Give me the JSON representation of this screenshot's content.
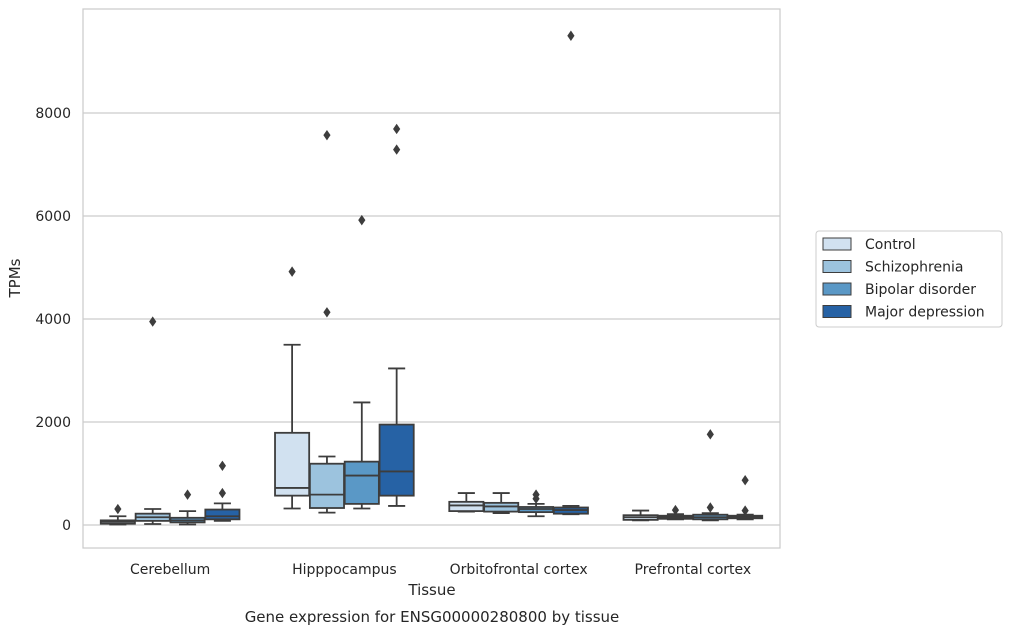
{
  "chart_data": {
    "type": "box",
    "title": "Gene expression for ENSG00000280800 by tissue",
    "xlabel": "Tissue",
    "ylabel": "TPMs",
    "ylim": [
      -440,
      10000
    ],
    "yticks": [
      0,
      2000,
      4000,
      6000,
      8000
    ],
    "grid": true,
    "legend_position": "right",
    "categories": [
      "Cerebellum",
      "Hipppocampus",
      "Orbitofrontal cortex",
      "Prefrontal cortex"
    ],
    "series": [
      {
        "name": "Control",
        "color": "#d1e1f0",
        "boxes": [
          {
            "whisker_low": 10,
            "q1": 25,
            "median": 60,
            "q3": 90,
            "whisker_high": 170,
            "outliers": [
              310
            ]
          },
          {
            "whisker_low": 320,
            "q1": 570,
            "median": 720,
            "q3": 1790,
            "whisker_high": 3500,
            "outliers": [
              4920
            ]
          },
          {
            "whisker_low": 260,
            "q1": 270,
            "median": 380,
            "q3": 450,
            "whisker_high": 620,
            "outliers": []
          },
          {
            "whisker_low": 90,
            "q1": 100,
            "median": 150,
            "q3": 190,
            "whisker_high": 280,
            "outliers": []
          }
        ]
      },
      {
        "name": "Schizophrenia",
        "color": "#9cc3de",
        "boxes": [
          {
            "whisker_low": 20,
            "q1": 80,
            "median": 150,
            "q3": 220,
            "whisker_high": 310,
            "outliers": [
              3950
            ]
          },
          {
            "whisker_low": 240,
            "q1": 330,
            "median": 590,
            "q3": 1190,
            "whisker_high": 1330,
            "outliers": [
              4130,
              7570
            ]
          },
          {
            "whisker_low": 230,
            "q1": 260,
            "median": 360,
            "q3": 430,
            "whisker_high": 620,
            "outliers": []
          },
          {
            "whisker_low": 110,
            "q1": 120,
            "median": 150,
            "q3": 180,
            "whisker_high": 210,
            "outliers": [
              290
            ]
          }
        ]
      },
      {
        "name": "Bipolar disorder",
        "color": "#5a98c6",
        "boxes": [
          {
            "whisker_low": 10,
            "q1": 50,
            "median": 90,
            "q3": 140,
            "whisker_high": 270,
            "outliers": [
              590
            ]
          },
          {
            "whisker_low": 320,
            "q1": 410,
            "median": 960,
            "q3": 1230,
            "whisker_high": 2380,
            "outliers": [
              5920
            ]
          },
          {
            "whisker_low": 170,
            "q1": 250,
            "median": 310,
            "q3": 350,
            "whisker_high": 410,
            "outliers": [
              510,
              590
            ]
          },
          {
            "whisker_low": 90,
            "q1": 110,
            "median": 150,
            "q3": 200,
            "whisker_high": 230,
            "outliers": [
              340,
              1760
            ]
          }
        ]
      },
      {
        "name": "Major depression",
        "color": "#2662a5",
        "boxes": [
          {
            "whisker_low": 80,
            "q1": 110,
            "median": 170,
            "q3": 300,
            "whisker_high": 420,
            "outliers": [
              620,
              1150
            ]
          },
          {
            "whisker_low": 370,
            "q1": 570,
            "median": 1040,
            "q3": 1950,
            "whisker_high": 3040,
            "outliers": [
              7290,
              7690
            ]
          },
          {
            "whisker_low": 210,
            "q1": 220,
            "median": 290,
            "q3": 340,
            "whisker_high": 370,
            "outliers": [
              9500
            ]
          },
          {
            "whisker_low": 110,
            "q1": 130,
            "median": 150,
            "q3": 180,
            "whisker_high": 200,
            "outliers": [
              280,
              870
            ]
          }
        ]
      }
    ]
  }
}
